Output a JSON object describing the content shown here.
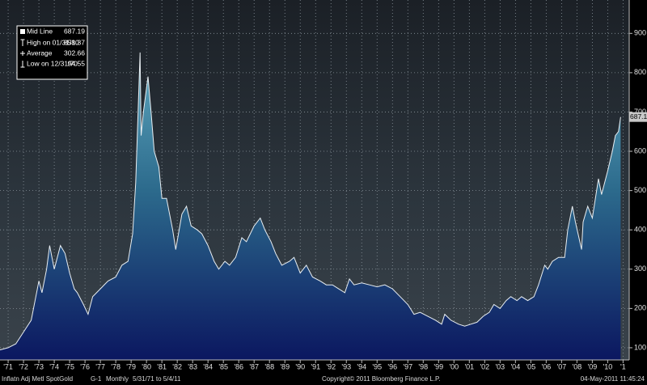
{
  "chart_data": {
    "type": "area",
    "x": [
      1970.97,
      1971.5,
      1972.0,
      1972.5,
      1973.0,
      1973.3,
      1973.5,
      1973.7,
      1974.0,
      1974.2,
      1974.5,
      1974.9,
      1975.2,
      1975.5,
      1975.8,
      1976.0,
      1976.4,
      1976.7,
      1977.0,
      1977.5,
      1978.0,
      1978.5,
      1978.9,
      1979.3,
      1979.6,
      1979.8,
      1980.08,
      1980.15,
      1980.3,
      1980.6,
      1980.8,
      1981.0,
      1981.3,
      1981.5,
      1981.8,
      1982.2,
      1982.4,
      1982.8,
      1983.1,
      1983.4,
      1983.8,
      1984.1,
      1984.5,
      1984.9,
      1985.2,
      1985.6,
      1985.9,
      1986.3,
      1986.7,
      1987.0,
      1987.5,
      1987.9,
      1988.2,
      1988.6,
      1988.9,
      1989.3,
      1989.8,
      1990.1,
      1990.5,
      1990.9,
      1991.3,
      1991.8,
      1992.2,
      1992.6,
      1993.0,
      1993.4,
      1993.7,
      1994.0,
      1994.5,
      1995.0,
      1995.5,
      1996.0,
      1996.5,
      1997.0,
      1997.5,
      1997.9,
      1998.3,
      1998.8,
      1999.3,
      1999.7,
      1999.9,
      2000.3,
      2000.8,
      2001.2,
      2001.6,
      2002.0,
      2002.4,
      2002.8,
      2003.1,
      2003.5,
      2003.9,
      2004.2,
      2004.6,
      2004.9,
      2005.3,
      2005.7,
      2006.0,
      2006.4,
      2006.6,
      2006.9,
      2007.3,
      2007.7,
      2007.9,
      2008.2,
      2008.4,
      2008.8,
      2008.9,
      2009.2,
      2009.5,
      2009.9,
      2010.1,
      2010.5,
      2010.8,
      2011.0,
      2011.2,
      2011.34
    ],
    "values": [
      94.55,
      100,
      110,
      140,
      170,
      230,
      270,
      240,
      300,
      360,
      300,
      360,
      340,
      290,
      250,
      240,
      210,
      185,
      230,
      250,
      270,
      280,
      310,
      320,
      390,
      520,
      851.37,
      640,
      700,
      790,
      700,
      600,
      560,
      480,
      480,
      400,
      350,
      440,
      460,
      410,
      400,
      390,
      360,
      320,
      300,
      320,
      310,
      330,
      380,
      370,
      410,
      430,
      400,
      370,
      340,
      310,
      320,
      330,
      290,
      310,
      280,
      270,
      260,
      260,
      250,
      240,
      275,
      260,
      265,
      260,
      255,
      260,
      250,
      230,
      210,
      185,
      190,
      180,
      170,
      160,
      185,
      170,
      160,
      155,
      160,
      165,
      180,
      190,
      210,
      200,
      220,
      230,
      220,
      230,
      220,
      230,
      260,
      310,
      300,
      320,
      330,
      330,
      400,
      460,
      420,
      350,
      420,
      460,
      430,
      530,
      490,
      550,
      600,
      640,
      650,
      687.19
    ],
    "xlim": [
      1970.97,
      2011.9
    ],
    "ylim": [
      69,
      985
    ],
    "xticks": [
      {
        "value": 1971.5,
        "label": "'71"
      },
      {
        "value": 1972.5,
        "label": "'72"
      },
      {
        "value": 1973.5,
        "label": "'73"
      },
      {
        "value": 1974.5,
        "label": "'74"
      },
      {
        "value": 1975.5,
        "label": "'75"
      },
      {
        "value": 1976.5,
        "label": "'76"
      },
      {
        "value": 1977.5,
        "label": "'77"
      },
      {
        "value": 1978.5,
        "label": "'78"
      },
      {
        "value": 1979.5,
        "label": "'79"
      },
      {
        "value": 1980.5,
        "label": "'80"
      },
      {
        "value": 1981.5,
        "label": "'81"
      },
      {
        "value": 1982.5,
        "label": "'82"
      },
      {
        "value": 1983.5,
        "label": "'83"
      },
      {
        "value": 1984.5,
        "label": "'84"
      },
      {
        "value": 1985.5,
        "label": "'85"
      },
      {
        "value": 1986.5,
        "label": "'86"
      },
      {
        "value": 1987.5,
        "label": "'87"
      },
      {
        "value": 1988.5,
        "label": "'88"
      },
      {
        "value": 1989.5,
        "label": "'89"
      },
      {
        "value": 1990.5,
        "label": "'90"
      },
      {
        "value": 1991.5,
        "label": "'91"
      },
      {
        "value": 1992.5,
        "label": "'92"
      },
      {
        "value": 1993.5,
        "label": "'93"
      },
      {
        "value": 1994.5,
        "label": "'94"
      },
      {
        "value": 1995.5,
        "label": "'95"
      },
      {
        "value": 1996.5,
        "label": "'96"
      },
      {
        "value": 1997.5,
        "label": "'97"
      },
      {
        "value": 1998.5,
        "label": "'98"
      },
      {
        "value": 1999.5,
        "label": "'99"
      },
      {
        "value": 2000.5,
        "label": "'00"
      },
      {
        "value": 2001.5,
        "label": "'01"
      },
      {
        "value": 2002.5,
        "label": "'02"
      },
      {
        "value": 2003.5,
        "label": "'03"
      },
      {
        "value": 2004.5,
        "label": "'04"
      },
      {
        "value": 2005.5,
        "label": "'05"
      },
      {
        "value": 2006.5,
        "label": "'06"
      },
      {
        "value": 2007.5,
        "label": "'07"
      },
      {
        "value": 2008.5,
        "label": "'08"
      },
      {
        "value": 2009.5,
        "label": "'09"
      },
      {
        "value": 2010.5,
        "label": "'10"
      },
      {
        "value": 2011.5,
        "label": "'1"
      }
    ],
    "yticks": [
      100,
      200,
      300,
      400,
      500,
      600,
      700,
      800,
      900
    ],
    "grid": true,
    "stats": [
      {
        "label": "Mid Line",
        "value": 687.19
      },
      {
        "label": "High on 01/31/80",
        "value": 851.37
      },
      {
        "label": "Average",
        "value": 302.66
      },
      {
        "label": "Low on 12/31/70",
        "value": 94.55
      }
    ],
    "footer": [
      "Inflatn Adj Metl SpotGold",
      "G-1",
      "Monthly",
      "5/31/71 to 5/4/11",
      "Copyright© 2011 Bloomberg Finance L.P.",
      "04-May-2011 11:45:24"
    ]
  }
}
